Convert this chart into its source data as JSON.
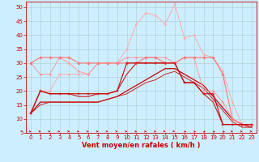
{
  "bg_color": "#cceeff",
  "grid_color": "#aacccc",
  "xlabel": "Vent moyen/en rafales ( km/h )",
  "xlabel_color": "#cc0000",
  "xlabel_fontsize": 6.0,
  "tick_color": "#cc0000",
  "tick_fontsize": 5.0,
  "ylim": [
    5,
    52
  ],
  "xlim": [
    -0.5,
    23.5
  ],
  "yticks": [
    5,
    10,
    15,
    20,
    25,
    30,
    35,
    40,
    45,
    50
  ],
  "xticks": [
    0,
    1,
    2,
    3,
    4,
    5,
    6,
    7,
    8,
    9,
    10,
    11,
    12,
    13,
    14,
    15,
    16,
    17,
    18,
    19,
    20,
    21,
    22,
    23
  ],
  "lines": [
    {
      "x": [
        0,
        1,
        2,
        3,
        4,
        5,
        6,
        7,
        8,
        9,
        10,
        11,
        12,
        13,
        14,
        15,
        16,
        17,
        18,
        19,
        20,
        21,
        22,
        23
      ],
      "y": [
        12,
        20,
        19,
        19,
        19,
        19,
        19,
        19,
        19,
        20,
        30,
        30,
        30,
        30,
        30,
        30,
        23,
        23,
        19,
        19,
        8,
        8,
        8,
        8
      ],
      "color": "#cc0000",
      "lw": 0.8,
      "marker": "+",
      "ms": 3.0,
      "zorder": 5
    },
    {
      "x": [
        0,
        1,
        2,
        3,
        4,
        5,
        6,
        7,
        8,
        9,
        10,
        11,
        12,
        13,
        14,
        15,
        16,
        17,
        18,
        19,
        20,
        21,
        22,
        23
      ],
      "y": [
        12,
        20,
        19,
        19,
        19,
        18,
        18,
        19,
        19,
        20,
        26,
        30,
        30,
        30,
        30,
        30,
        23,
        23,
        19,
        16,
        8,
        8,
        8,
        8
      ],
      "color": "#cc0000",
      "lw": 0.7,
      "marker": null,
      "ms": 0,
      "zorder": 4
    },
    {
      "x": [
        0,
        1,
        2,
        3,
        4,
        5,
        6,
        7,
        8,
        9,
        10,
        11,
        12,
        13,
        14,
        15,
        16,
        17,
        18,
        19,
        20,
        21,
        22,
        23
      ],
      "y": [
        12,
        16,
        16,
        16,
        16,
        16,
        16,
        16,
        17,
        18,
        20,
        22,
        24,
        26,
        28,
        28,
        26,
        24,
        22,
        18,
        14,
        10,
        8,
        7
      ],
      "color": "#cc0000",
      "lw": 0.9,
      "marker": null,
      "ms": 0,
      "zorder": 3
    },
    {
      "x": [
        0,
        1,
        2,
        3,
        4,
        5,
        6,
        7,
        8,
        9,
        10,
        11,
        12,
        13,
        14,
        15,
        16,
        17,
        18,
        19,
        20,
        21,
        22,
        23
      ],
      "y": [
        12,
        15,
        16,
        16,
        16,
        16,
        16,
        16,
        17,
        18,
        19,
        21,
        23,
        24,
        26,
        27,
        25,
        23,
        21,
        17,
        13,
        9,
        7,
        7
      ],
      "color": "#cc2222",
      "lw": 0.7,
      "marker": null,
      "ms": 0,
      "zorder": 3
    },
    {
      "x": [
        0,
        1,
        2,
        3,
        4,
        5,
        6,
        7,
        8,
        9,
        10,
        11,
        12,
        13,
        14,
        15,
        16,
        17,
        18,
        19,
        20,
        21,
        22,
        23
      ],
      "y": [
        30,
        32,
        32,
        32,
        32,
        30,
        30,
        30,
        30,
        30,
        30,
        30,
        32,
        32,
        30,
        30,
        32,
        32,
        32,
        32,
        26,
        10,
        8,
        8
      ],
      "color": "#ff7777",
      "lw": 0.8,
      "marker": "D",
      "ms": 1.8,
      "zorder": 4
    },
    {
      "x": [
        0,
        1,
        2,
        3,
        4,
        5,
        6,
        7,
        8,
        9,
        10,
        11,
        12,
        13,
        14,
        15,
        16,
        17,
        18,
        19,
        20,
        21,
        22,
        23
      ],
      "y": [
        30,
        26,
        26,
        32,
        30,
        27,
        26,
        30,
        30,
        30,
        32,
        32,
        32,
        32,
        32,
        30,
        32,
        32,
        20,
        20,
        16,
        10,
        8,
        8
      ],
      "color": "#ff9999",
      "lw": 0.7,
      "marker": "D",
      "ms": 1.5,
      "zorder": 3
    },
    {
      "x": [
        0,
        1,
        2,
        3,
        4,
        5,
        6,
        7,
        8,
        9,
        10,
        11,
        12,
        13,
        14,
        15,
        16,
        17,
        18,
        19,
        20,
        21,
        22,
        23
      ],
      "y": [
        12,
        20,
        20,
        26,
        26,
        26,
        26,
        30,
        30,
        30,
        35,
        44,
        48,
        47,
        44,
        51,
        39,
        40,
        33,
        32,
        27,
        16,
        8,
        8
      ],
      "color": "#ffaaaa",
      "lw": 0.7,
      "marker": "D",
      "ms": 1.5,
      "zorder": 2
    }
  ],
  "arrow_angles_deg": [
    0,
    0,
    0,
    0,
    0,
    0,
    0,
    0,
    0,
    0,
    0,
    0,
    0,
    0,
    15,
    30,
    35,
    40,
    40,
    40,
    35,
    0,
    0,
    0
  ]
}
